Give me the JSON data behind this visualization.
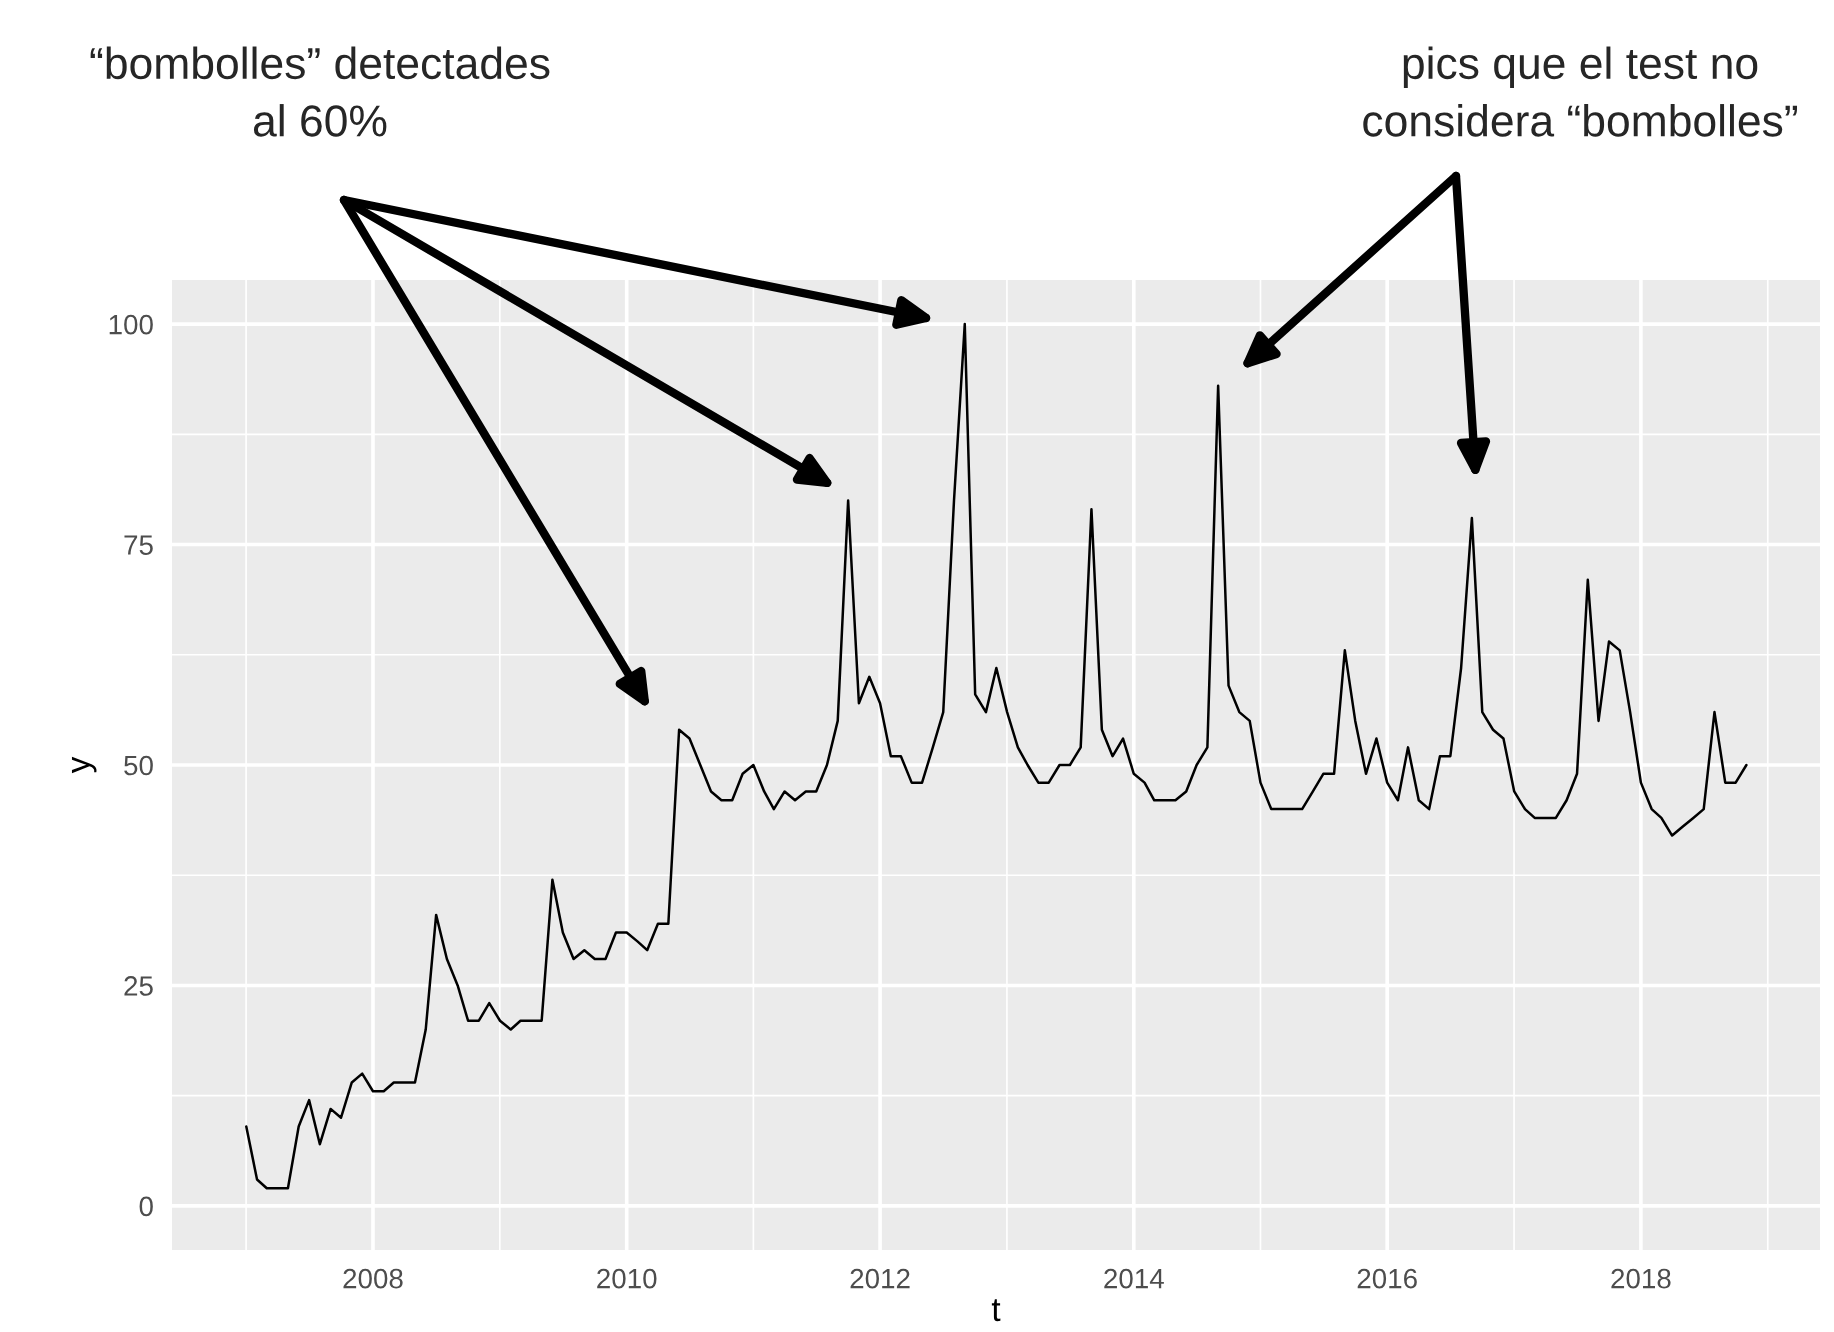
{
  "chart_data": {
    "type": "line",
    "xlabel": "t",
    "ylabel": "y",
    "x": [
      "2007-01",
      "2007-02",
      "2007-03",
      "2007-04",
      "2007-05",
      "2007-06",
      "2007-07",
      "2007-08",
      "2007-09",
      "2007-10",
      "2007-11",
      "2007-12",
      "2008-01",
      "2008-02",
      "2008-03",
      "2008-04",
      "2008-05",
      "2008-06",
      "2008-07",
      "2008-08",
      "2008-09",
      "2008-10",
      "2008-11",
      "2008-12",
      "2009-01",
      "2009-02",
      "2009-03",
      "2009-04",
      "2009-05",
      "2009-06",
      "2009-07",
      "2009-08",
      "2009-09",
      "2009-10",
      "2009-11",
      "2009-12",
      "2010-01",
      "2010-02",
      "2010-03",
      "2010-04",
      "2010-05",
      "2010-06",
      "2010-07",
      "2010-08",
      "2010-09",
      "2010-10",
      "2010-11",
      "2010-12",
      "2011-01",
      "2011-02",
      "2011-03",
      "2011-04",
      "2011-05",
      "2011-06",
      "2011-07",
      "2011-08",
      "2011-09",
      "2011-10",
      "2011-11",
      "2011-12",
      "2012-01",
      "2012-02",
      "2012-03",
      "2012-04",
      "2012-05",
      "2012-06",
      "2012-07",
      "2012-08",
      "2012-09",
      "2012-10",
      "2012-11",
      "2012-12",
      "2013-01",
      "2013-02",
      "2013-03",
      "2013-04",
      "2013-05",
      "2013-06",
      "2013-07",
      "2013-08",
      "2013-09",
      "2013-10",
      "2013-11",
      "2013-12",
      "2014-01",
      "2014-02",
      "2014-03",
      "2014-04",
      "2014-05",
      "2014-06",
      "2014-07",
      "2014-08",
      "2014-09",
      "2014-10",
      "2014-11",
      "2014-12",
      "2015-01",
      "2015-02",
      "2015-03",
      "2015-04",
      "2015-05",
      "2015-06",
      "2015-07",
      "2015-08",
      "2015-09",
      "2015-10",
      "2015-11",
      "2015-12",
      "2016-01",
      "2016-02",
      "2016-03",
      "2016-04",
      "2016-05",
      "2016-06",
      "2016-07",
      "2016-08",
      "2016-09",
      "2016-10",
      "2016-11",
      "2016-12",
      "2017-01",
      "2017-02",
      "2017-03",
      "2017-04",
      "2017-05",
      "2017-06",
      "2017-07",
      "2017-08",
      "2017-09",
      "2017-10",
      "2017-11",
      "2017-12",
      "2018-01",
      "2018-02",
      "2018-03",
      "2018-04",
      "2018-05",
      "2018-06",
      "2018-07",
      "2018-08",
      "2018-09",
      "2018-10",
      "2018-11"
    ],
    "series": [
      {
        "color": "#000000",
        "values": [
          9,
          3,
          2,
          2,
          2,
          9,
          12,
          7,
          11,
          10,
          14,
          15,
          13,
          13,
          14,
          14,
          14,
          20,
          33,
          28,
          25,
          21,
          21,
          23,
          21,
          20,
          21,
          21,
          21,
          37,
          31,
          28,
          29,
          28,
          28,
          31,
          31,
          30,
          29,
          32,
          32,
          54,
          53,
          50,
          47,
          46,
          46,
          49,
          50,
          47,
          45,
          47,
          46,
          47,
          47,
          50,
          55,
          80,
          57,
          60,
          57,
          51,
          51,
          48,
          48,
          52,
          56,
          80,
          100,
          58,
          56,
          61,
          56,
          52,
          50,
          48,
          48,
          50,
          50,
          52,
          79,
          54,
          51,
          53,
          49,
          48,
          46,
          46,
          46,
          47,
          50,
          52,
          93,
          59,
          56,
          55,
          48,
          45,
          45,
          45,
          45,
          47,
          49,
          49,
          63,
          55,
          49,
          53,
          48,
          46,
          52,
          46,
          45,
          51,
          51,
          61,
          78,
          56,
          54,
          53,
          47,
          45,
          44,
          44,
          44,
          46,
          49,
          71,
          55,
          64,
          63,
          56,
          48,
          45,
          44,
          42,
          43,
          44,
          45,
          56,
          48,
          48,
          50
        ]
      }
    ],
    "xlim": [
      "2006-06",
      "2019-06"
    ],
    "xticks": [
      {
        "value": "2008",
        "label": "2008"
      },
      {
        "value": "2010",
        "label": "2010"
      },
      {
        "value": "2012",
        "label": "2012"
      },
      {
        "value": "2014",
        "label": "2014"
      },
      {
        "value": "2016",
        "label": "2016"
      },
      {
        "value": "2018",
        "label": "2018"
      }
    ],
    "ylim": [
      -5,
      105
    ],
    "yticks": [
      0,
      25,
      50,
      75,
      100
    ],
    "grid": true,
    "line_style": "solid",
    "annotations": [
      "“bombolles” detectades\nal 60%",
      "pics que el test no\nconsidera “bombolles”"
    ]
  }
}
